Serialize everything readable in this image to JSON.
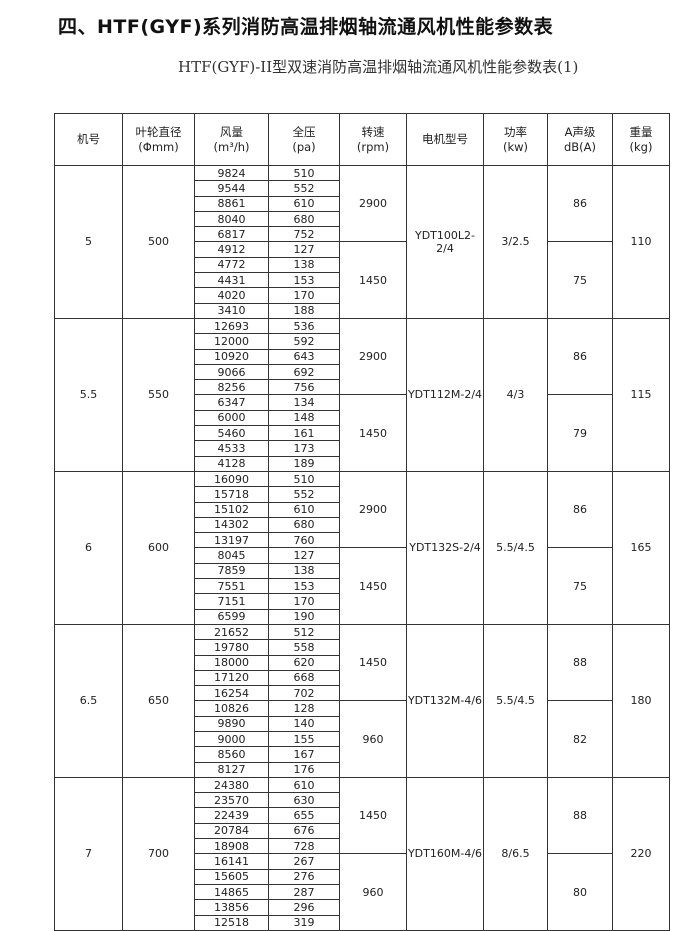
{
  "title": "四、HTF(GYF)系列消防高温排烟轴流通风机性能参数表",
  "subtitle": "HTF(GYF)-II型双速消防高温排烟轴流通风机性能参数表(1)",
  "headers": [
    {
      "l1": "机号",
      "l2": ""
    },
    {
      "l1": "叶轮直径",
      "l2": "(Φmm)"
    },
    {
      "l1": "风量",
      "l2": "(m³/h)"
    },
    {
      "l1": "全压",
      "l2": "(pa)"
    },
    {
      "l1": "转速",
      "l2": "(rpm)"
    },
    {
      "l1": "电机型号",
      "l2": ""
    },
    {
      "l1": "功率",
      "l2": "(kw)"
    },
    {
      "l1": "A声级",
      "l2": "dB(A)"
    },
    {
      "l1": "重量",
      "l2": "(kg)"
    }
  ],
  "groups": [
    {
      "model": "5",
      "diameter": "500",
      "motor": "YDT100L2-2/4",
      "power": "3/2.5",
      "weight": "110",
      "speeds": [
        {
          "rpm": "2900",
          "db": "86",
          "rows": [
            [
              "9824",
              "510"
            ],
            [
              "9544",
              "552"
            ],
            [
              "8861",
              "610"
            ],
            [
              "8040",
              "680"
            ],
            [
              "6817",
              "752"
            ]
          ]
        },
        {
          "rpm": "1450",
          "db": "75",
          "rows": [
            [
              "4912",
              "127"
            ],
            [
              "4772",
              "138"
            ],
            [
              "4431",
              "153"
            ],
            [
              "4020",
              "170"
            ],
            [
              "3410",
              "188"
            ]
          ]
        }
      ]
    },
    {
      "model": "5.5",
      "diameter": "550",
      "motor": "YDT112M-2/4",
      "power": "4/3",
      "weight": "115",
      "speeds": [
        {
          "rpm": "2900",
          "db": "86",
          "rows": [
            [
              "12693",
              "536"
            ],
            [
              "12000",
              "592"
            ],
            [
              "10920",
              "643"
            ],
            [
              "9066",
              "692"
            ],
            [
              "8256",
              "756"
            ]
          ]
        },
        {
          "rpm": "1450",
          "db": "79",
          "rows": [
            [
              "6347",
              "134"
            ],
            [
              "6000",
              "148"
            ],
            [
              "5460",
              "161"
            ],
            [
              "4533",
              "173"
            ],
            [
              "4128",
              "189"
            ]
          ]
        }
      ]
    },
    {
      "model": "6",
      "diameter": "600",
      "motor": "YDT132S-2/4",
      "power": "5.5/4.5",
      "weight": "165",
      "speeds": [
        {
          "rpm": "2900",
          "db": "86",
          "rows": [
            [
              "16090",
              "510"
            ],
            [
              "15718",
              "552"
            ],
            [
              "15102",
              "610"
            ],
            [
              "14302",
              "680"
            ],
            [
              "13197",
              "760"
            ]
          ]
        },
        {
          "rpm": "1450",
          "db": "75",
          "rows": [
            [
              "8045",
              "127"
            ],
            [
              "7859",
              "138"
            ],
            [
              "7551",
              "153"
            ],
            [
              "7151",
              "170"
            ],
            [
              "6599",
              "190"
            ]
          ]
        }
      ]
    },
    {
      "model": "6.5",
      "diameter": "650",
      "motor": "YDT132M-4/6",
      "power": "5.5/4.5",
      "weight": "180",
      "speeds": [
        {
          "rpm": "1450",
          "db": "88",
          "rows": [
            [
              "21652",
              "512"
            ],
            [
              "19780",
              "558"
            ],
            [
              "18000",
              "620"
            ],
            [
              "17120",
              "668"
            ],
            [
              "16254",
              "702"
            ]
          ]
        },
        {
          "rpm": "960",
          "db": "82",
          "rows": [
            [
              "10826",
              "128"
            ],
            [
              "9890",
              "140"
            ],
            [
              "9000",
              "155"
            ],
            [
              "8560",
              "167"
            ],
            [
              "8127",
              "176"
            ]
          ]
        }
      ]
    },
    {
      "model": "7",
      "diameter": "700",
      "motor": "YDT160M-4/6",
      "power": "8/6.5",
      "weight": "220",
      "speeds": [
        {
          "rpm": "1450",
          "db": "88",
          "rows": [
            [
              "24380",
              "610"
            ],
            [
              "23570",
              "630"
            ],
            [
              "22439",
              "655"
            ],
            [
              "20784",
              "676"
            ],
            [
              "18908",
              "728"
            ]
          ]
        },
        {
          "rpm": "960",
          "db": "80",
          "rows": [
            [
              "16141",
              "267"
            ],
            [
              "15605",
              "276"
            ],
            [
              "14865",
              "287"
            ],
            [
              "13856",
              "296"
            ],
            [
              "12518",
              "319"
            ]
          ]
        }
      ]
    }
  ]
}
